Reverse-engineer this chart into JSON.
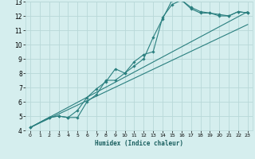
{
  "xlabel": "Humidex (Indice chaleur)",
  "bg_color": "#d5eeee",
  "grid_color": "#b8d8d8",
  "line_color": "#2a7f7f",
  "xlim": [
    -0.5,
    23.5
  ],
  "ylim": [
    4,
    13
  ],
  "xticks": [
    0,
    1,
    2,
    3,
    4,
    5,
    6,
    7,
    8,
    9,
    10,
    11,
    12,
    13,
    14,
    15,
    16,
    17,
    18,
    19,
    20,
    21,
    22,
    23
  ],
  "yticks": [
    4,
    5,
    6,
    7,
    8,
    9,
    10,
    11,
    12,
    13
  ],
  "series": [
    {
      "x": [
        0,
        2,
        3,
        4,
        5,
        6,
        7,
        8,
        9,
        10,
        11,
        12,
        13,
        14,
        15,
        16,
        17,
        18,
        19,
        20,
        21,
        22,
        23
      ],
      "y": [
        4.2,
        4.9,
        5.0,
        4.9,
        4.9,
        6.0,
        6.5,
        7.5,
        7.5,
        8.0,
        8.5,
        9.0,
        10.5,
        11.8,
        13.1,
        13.1,
        12.5,
        12.2,
        12.2,
        12.0,
        12.0,
        12.3,
        12.2
      ],
      "has_markers": true
    },
    {
      "x": [
        0,
        2,
        3,
        4,
        5,
        6,
        7,
        8,
        9,
        10,
        11,
        12,
        13,
        14,
        15,
        16,
        17,
        18,
        19,
        20,
        21,
        22,
        23
      ],
      "y": [
        4.2,
        4.9,
        5.0,
        4.9,
        5.4,
        6.3,
        6.9,
        7.4,
        8.3,
        8.0,
        8.8,
        9.3,
        9.5,
        11.9,
        12.8,
        13.1,
        12.6,
        12.3,
        12.2,
        12.1,
        12.0,
        12.3,
        12.2
      ],
      "has_markers": true
    },
    {
      "x": [
        0,
        23
      ],
      "y": [
        4.2,
        12.3
      ],
      "has_markers": false
    },
    {
      "x": [
        0,
        23
      ],
      "y": [
        4.2,
        11.4
      ],
      "has_markers": false
    }
  ]
}
